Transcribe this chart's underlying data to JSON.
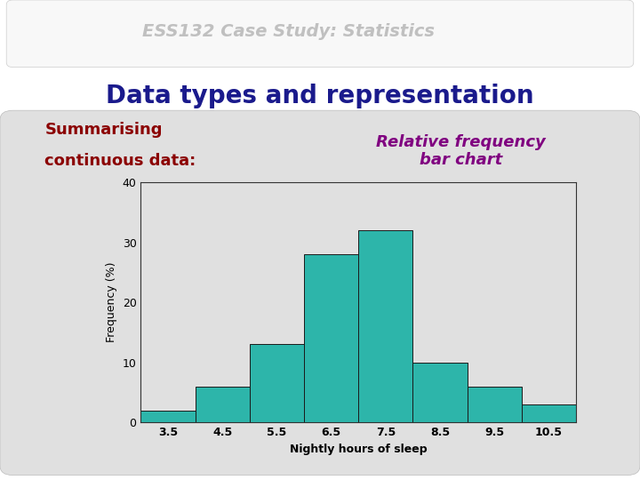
{
  "title_main": "Data types and representation",
  "subtitle_header": "ESS132 Case Study: Statistics",
  "subtitle_box": "Summarising",
  "subtitle_box2": "continuous data:",
  "chart_title": "Relative frequency\nbar chart",
  "xlabel": "Nightly hours of sleep",
  "ylabel": "Frequency (%)",
  "bar_centers": [
    3.5,
    4.5,
    5.5,
    6.5,
    7.5,
    8.5,
    9.5,
    10.5
  ],
  "bar_heights": [
    2,
    6,
    13,
    28,
    32,
    10,
    6,
    3
  ],
  "bar_width": 1.0,
  "bar_color": "#2DB5AA",
  "bar_edge_color": "#1a1a1a",
  "ylim": [
    0,
    40
  ],
  "yticks": [
    0,
    10,
    20,
    30,
    40
  ],
  "xticks": [
    3.5,
    4.5,
    5.5,
    6.5,
    7.5,
    8.5,
    9.5,
    10.5
  ],
  "slide_bg": "#ffffff",
  "box_bg": "#e0e0e0",
  "title_color": "#1a1a8c",
  "header_color": "#c0c0c0",
  "subtitle_color": "#8b0000",
  "chart_title_color": "#800080",
  "axis_label_fontsize": 9,
  "chart_title_fontsize": 13
}
